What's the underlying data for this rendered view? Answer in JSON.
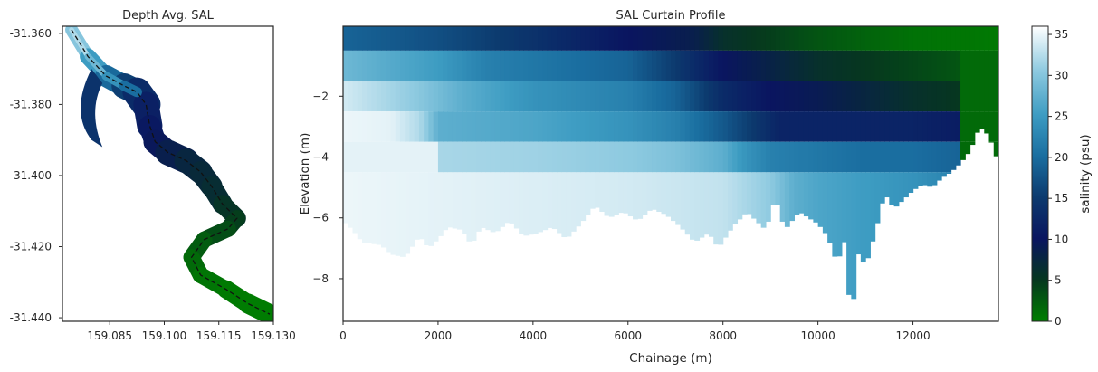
{
  "chart_data": [
    {
      "type": "map",
      "title": "Depth Avg. SAL",
      "xlabel": "",
      "ylabel": "",
      "xlim": [
        159.072,
        159.13
      ],
      "ylim": [
        -31.441,
        -31.358
      ],
      "xticks": [
        159.085,
        159.1,
        159.115,
        159.13
      ],
      "xtick_labels": [
        "159.085",
        "159.100",
        "159.115",
        "159.130"
      ],
      "yticks": [
        -31.36,
        -31.38,
        -31.4,
        -31.42,
        -31.44
      ],
      "ytick_labels": [
        "-31.360",
        "-31.380",
        "-31.400",
        "-31.420",
        "-31.440"
      ],
      "river_centerline": [
        [
          159.0745,
          -31.359
        ],
        [
          159.079,
          -31.3665
        ],
        [
          159.084,
          -31.372
        ],
        [
          159.089,
          -31.3748
        ],
        [
          159.0925,
          -31.3765
        ],
        [
          159.095,
          -31.38
        ],
        [
          159.096,
          -31.386
        ],
        [
          159.0975,
          -31.3905
        ],
        [
          159.101,
          -31.3935
        ],
        [
          159.106,
          -31.3958
        ],
        [
          159.11,
          -31.399
        ],
        [
          159.113,
          -31.403
        ],
        [
          159.116,
          -31.408
        ],
        [
          159.12,
          -31.412
        ],
        [
          159.1175,
          -31.415
        ],
        [
          159.111,
          -31.418
        ],
        [
          159.1075,
          -31.423
        ],
        [
          159.11,
          -31.428
        ],
        [
          159.117,
          -31.432
        ],
        [
          159.123,
          -31.436
        ],
        [
          159.129,
          -31.439
        ]
      ],
      "along_river_salinity": [
        31,
        28,
        22,
        17,
        14,
        12,
        11,
        10,
        9,
        8,
        7,
        7,
        6,
        5,
        4,
        3,
        2,
        1,
        0.5,
        0.3,
        0.2
      ]
    },
    {
      "type": "heatmap",
      "title": "SAL Curtain Profile",
      "xlabel": "Chainage (m)",
      "ylabel": "Elevation (m)",
      "xlim": [
        0,
        13800
      ],
      "ylim": [
        -9.4,
        0.3
      ],
      "xticks": [
        0,
        2000,
        4000,
        6000,
        8000,
        10000,
        12000
      ],
      "xtick_labels": [
        "0",
        "2000",
        "4000",
        "6000",
        "8000",
        "10000",
        "12000"
      ],
      "yticks": [
        -2,
        -4,
        -6,
        -8
      ],
      "ytick_labels": [
        "−2",
        "−4",
        "−6",
        "−8"
      ],
      "layers": [
        {
          "top": 0.3,
          "bottom": -0.5,
          "stops": [
            [
              0,
              19
            ],
            [
              2000,
              17
            ],
            [
              4000,
              14
            ],
            [
              6000,
              10
            ],
            [
              7400,
              8.5
            ],
            [
              8000,
              6
            ],
            [
              10000,
              3
            ],
            [
              12000,
              1
            ],
            [
              13800,
              0.5
            ]
          ]
        },
        {
          "top": -0.5,
          "bottom": -1.5,
          "stops": [
            [
              0,
              28
            ],
            [
              2000,
              25
            ],
            [
              3000,
              22
            ],
            [
              4000,
              21
            ],
            [
              6000,
              19
            ],
            [
              7000,
              15
            ],
            [
              8000,
              10
            ],
            [
              9000,
              8
            ],
            [
              10000,
              6
            ],
            [
              12000,
              4
            ],
            [
              13800,
              2
            ]
          ]
        },
        {
          "top": -1.5,
          "bottom": -2.5,
          "stops": [
            [
              0,
              34
            ],
            [
              1500,
              30
            ],
            [
              2500,
              27
            ],
            [
              4000,
              24
            ],
            [
              6000,
              22
            ],
            [
              7000,
              19
            ],
            [
              8000,
              13
            ],
            [
              9000,
              10
            ],
            [
              10000,
              9
            ],
            [
              12000,
              6
            ],
            [
              13000,
              5
            ]
          ]
        },
        {
          "top": -2.5,
          "bottom": -3.5,
          "stops": [
            [
              0,
              35.5
            ],
            [
              1000,
              35
            ],
            [
              1600,
              32
            ],
            [
              2000,
              27
            ],
            [
              4000,
              26
            ],
            [
              5000,
              25
            ],
            [
              6000,
              24
            ],
            [
              7000,
              22
            ],
            [
              8000,
              18
            ],
            [
              8800,
              14
            ],
            [
              9200,
              12
            ],
            [
              12000,
              12
            ],
            [
              13000,
              11
            ]
          ]
        },
        {
          "top": -3.5,
          "bottom": -4.5,
          "stops": [
            [
              0,
              35
            ],
            [
              2000,
              35
            ],
            [
              2050,
              31.5
            ],
            [
              4000,
              31
            ],
            [
              6000,
              30
            ],
            [
              7000,
              29
            ],
            [
              8000,
              27
            ],
            [
              8500,
              24
            ],
            [
              9000,
              22
            ],
            [
              10000,
              21
            ],
            [
              11000,
              20
            ],
            [
              12000,
              20
            ],
            [
              13000,
              19
            ]
          ]
        },
        {
          "top": -4.5,
          "bottom": -9.4,
          "stops": [
            [
              0,
              35.5
            ],
            [
              2000,
              35
            ],
            [
              4000,
              34.5
            ],
            [
              6000,
              34
            ],
            [
              7000,
              33.5
            ],
            [
              8000,
              33
            ],
            [
              9000,
              30
            ],
            [
              9500,
              27
            ],
            [
              10000,
              26
            ],
            [
              11000,
              25
            ],
            [
              12000,
              24
            ],
            [
              13000,
              22
            ]
          ]
        }
      ],
      "bed_profile": [
        [
          0,
          -6.1
        ],
        [
          200,
          -6.4
        ],
        [
          400,
          -6.8
        ],
        [
          800,
          -6.9
        ],
        [
          1000,
          -7.2
        ],
        [
          1300,
          -7.3
        ],
        [
          1600,
          -6.6
        ],
        [
          1800,
          -7.0
        ],
        [
          2000,
          -6.7
        ],
        [
          2200,
          -6.3
        ],
        [
          2500,
          -6.4
        ],
        [
          2700,
          -6.9
        ],
        [
          2900,
          -6.3
        ],
        [
          3200,
          -6.5
        ],
        [
          3500,
          -6.1
        ],
        [
          3800,
          -6.6
        ],
        [
          4100,
          -6.5
        ],
        [
          4400,
          -6.3
        ],
        [
          4700,
          -6.7
        ],
        [
          5000,
          -6.2
        ],
        [
          5300,
          -5.6
        ],
        [
          5600,
          -6.0
        ],
        [
          5900,
          -5.8
        ],
        [
          6200,
          -6.1
        ],
        [
          6500,
          -5.7
        ],
        [
          6800,
          -5.9
        ],
        [
          7100,
          -6.3
        ],
        [
          7400,
          -6.8
        ],
        [
          7700,
          -6.5
        ],
        [
          7900,
          -7.0
        ],
        [
          8200,
          -6.3
        ],
        [
          8500,
          -5.8
        ],
        [
          8700,
          -6.1
        ],
        [
          8900,
          -6.4
        ],
        [
          9100,
          -5.3
        ],
        [
          9300,
          -6.4
        ],
        [
          9600,
          -5.8
        ],
        [
          9800,
          -6.0
        ],
        [
          10000,
          -6.2
        ],
        [
          10200,
          -6.6
        ],
        [
          10400,
          -7.5
        ],
        [
          10550,
          -6.8
        ],
        [
          10700,
          -9.4
        ],
        [
          10850,
          -7.2
        ],
        [
          11000,
          -7.6
        ],
        [
          11200,
          -6.5
        ],
        [
          11400,
          -5.2
        ],
        [
          11600,
          -5.7
        ],
        [
          11800,
          -5.4
        ],
        [
          12000,
          -5.1
        ],
        [
          12200,
          -4.9
        ],
        [
          12400,
          -5.0
        ],
        [
          12600,
          -4.7
        ],
        [
          12800,
          -4.5
        ],
        [
          13000,
          -4.2
        ],
        [
          13200,
          -3.8
        ],
        [
          13400,
          -3.0
        ],
        [
          13600,
          -3.3
        ],
        [
          13800,
          -4.2
        ]
      ]
    }
  ],
  "colorbar": {
    "label": "salinity (psu)",
    "min": 0,
    "max": 36,
    "ticks": [
      0,
      5,
      10,
      15,
      20,
      25,
      30,
      35
    ],
    "tick_labels": [
      "0",
      "5",
      "10",
      "15",
      "20",
      "25",
      "30",
      "35"
    ],
    "colormap": "ocean_r",
    "colors": [
      "#ffffff",
      "#8ecae0",
      "#3d9cc2",
      "#1a6ea0",
      "#0c3a6e",
      "#0a1560",
      "#06371f",
      "#008000"
    ]
  }
}
